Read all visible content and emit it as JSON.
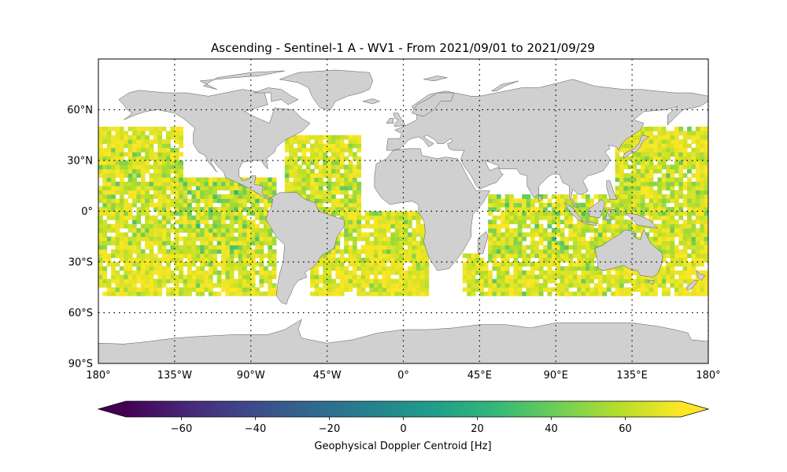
{
  "title": "Ascending - Sentinel-1 A - WV1 - From 2021/09/01 to 2021/09/29",
  "map": {
    "projection": "plate-carree",
    "lon_range": [
      -180,
      180
    ],
    "lat_range": [
      -90,
      90
    ],
    "land_color": "#d0d0d0",
    "coast_color": "#555555",
    "grid": {
      "style": "dotted",
      "lons": [
        -135,
        -90,
        -45,
        0,
        45,
        90,
        135,
        180
      ],
      "lats": [
        60,
        30,
        0,
        -30,
        -60
      ]
    },
    "lon_ticks": [
      {
        "value": -180,
        "label": "180°"
      },
      {
        "value": -135,
        "label": "135°W"
      },
      {
        "value": -90,
        "label": "90°W"
      },
      {
        "value": -45,
        "label": "45°W"
      },
      {
        "value": 0,
        "label": "0°"
      },
      {
        "value": 45,
        "label": "45°E"
      },
      {
        "value": 90,
        "label": "90°E"
      },
      {
        "value": 135,
        "label": "135°E"
      },
      {
        "value": 180,
        "label": "180°"
      }
    ],
    "lat_ticks": [
      {
        "value": 60,
        "label": "60°N"
      },
      {
        "value": 30,
        "label": "30°N"
      },
      {
        "value": 0,
        "label": "0°"
      },
      {
        "value": -30,
        "label": "30°S"
      },
      {
        "value": -60,
        "label": "60°S"
      },
      {
        "value": -90,
        "label": "90°S"
      }
    ]
  },
  "chart_data": {
    "type": "heatmap",
    "value_range": [
      -75,
      75
    ],
    "colormap": "viridis",
    "colormap_stops": [
      "#440154",
      "#482878",
      "#3e4989",
      "#31688e",
      "#26828e",
      "#1f9e89",
      "#35b779",
      "#6ece58",
      "#b5de2b",
      "#fde725"
    ],
    "cell_size_deg": [
      2.5,
      2.5
    ],
    "lat_coverage": [
      -50,
      50
    ],
    "swaths": [
      {
        "region": "north-pacific-east",
        "lon": [
          -180,
          -130
        ],
        "lat": [
          -50,
          50
        ],
        "value_range": [
          30,
          75
        ]
      },
      {
        "region": "east-pacific",
        "lon": [
          -130,
          -75
        ],
        "lat": [
          -50,
          20
        ],
        "value_range": [
          20,
          75
        ]
      },
      {
        "region": "north-atlantic",
        "lon": [
          -70,
          -25
        ],
        "lat": [
          0,
          45
        ],
        "value_range": [
          30,
          75
        ]
      },
      {
        "region": "south-atlantic",
        "lon": [
          -55,
          15
        ],
        "lat": [
          -50,
          0
        ],
        "value_range": [
          30,
          75
        ]
      },
      {
        "region": "south-atlantic-east",
        "lon": [
          35,
          60
        ],
        "lat": [
          -50,
          -25
        ],
        "value_range": [
          20,
          75
        ]
      },
      {
        "region": "indian-ocean",
        "lon": [
          50,
          135
        ],
        "lat": [
          -50,
          10
        ],
        "value_range": [
          20,
          75
        ]
      },
      {
        "region": "west-pacific",
        "lon": [
          125,
          180
        ],
        "lat": [
          -50,
          50
        ],
        "value_range": [
          30,
          75
        ]
      }
    ],
    "colorbar": {
      "label": "Geophysical Doppler Centroid [Hz]",
      "range": [
        -75,
        75
      ],
      "extend": "both",
      "ticks": [
        {
          "value": -60,
          "label": "−60"
        },
        {
          "value": -40,
          "label": "−40"
        },
        {
          "value": -20,
          "label": "−20"
        },
        {
          "value": 0,
          "label": "0"
        },
        {
          "value": 20,
          "label": "20"
        },
        {
          "value": 40,
          "label": "40"
        },
        {
          "value": 60,
          "label": "60"
        }
      ]
    }
  }
}
